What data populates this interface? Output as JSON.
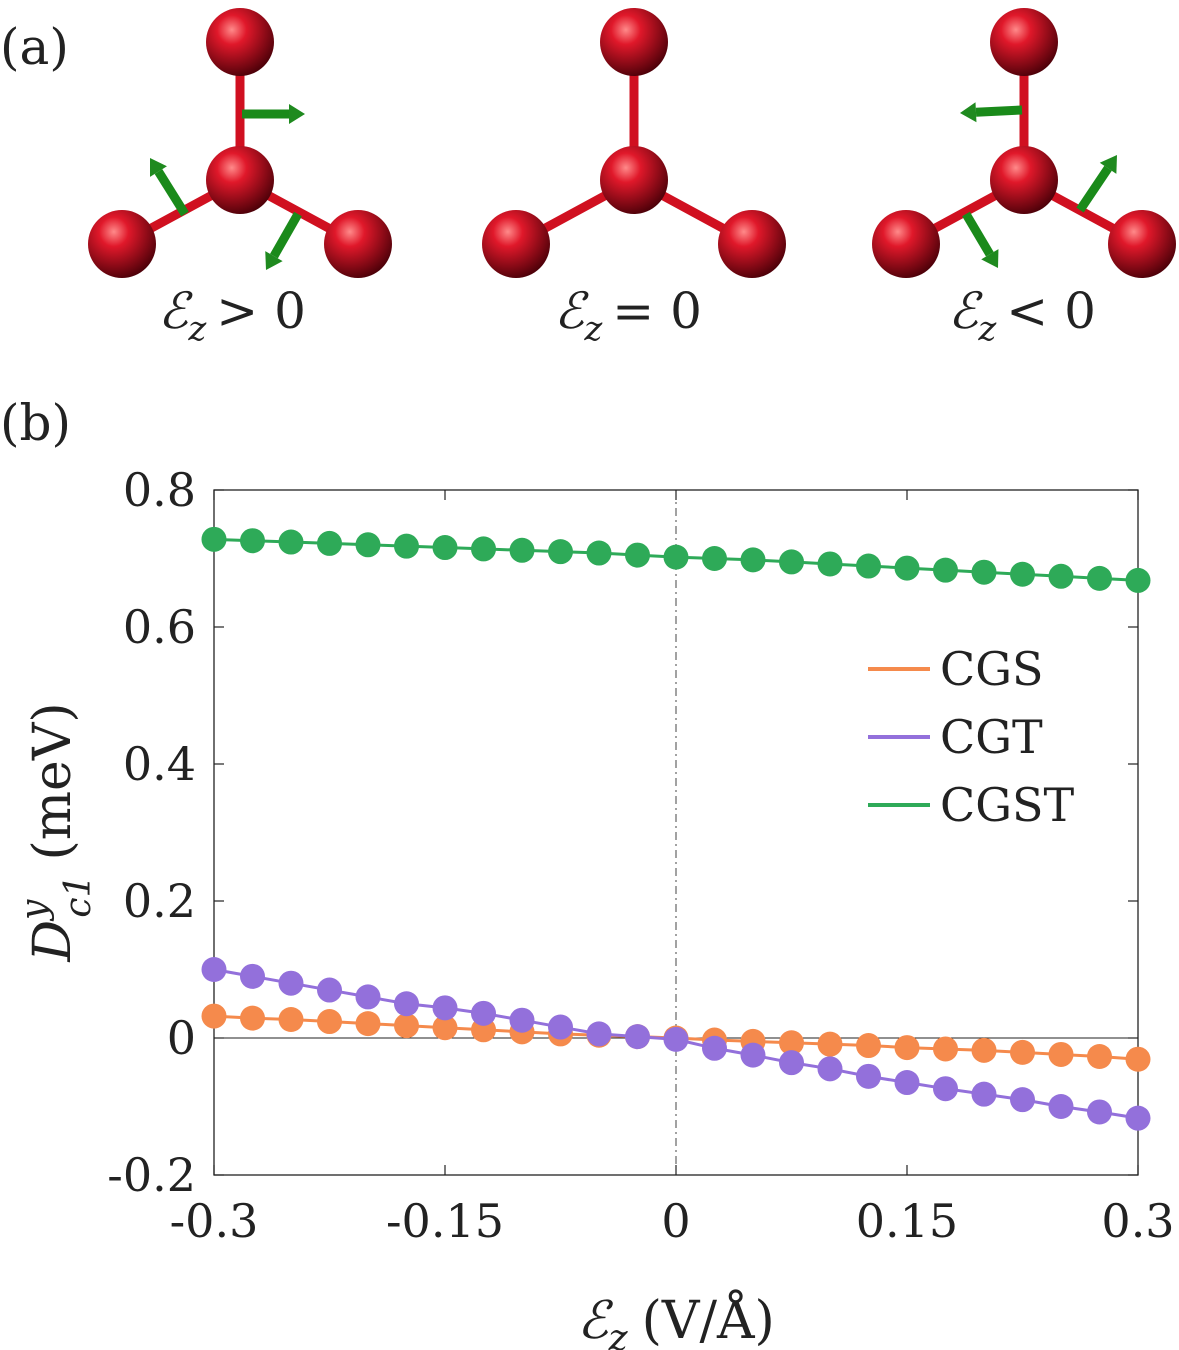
{
  "panel_a": {
    "label": "(a)",
    "captions": [
      {
        "symbol": "ℰ",
        "sub": "z",
        "relation": "> 0"
      },
      {
        "symbol": "ℰ",
        "sub": "z",
        "relation": "= 0"
      },
      {
        "symbol": "ℰ",
        "sub": "z",
        "relation": "< 0"
      }
    ],
    "atom_color": "#d01020",
    "arrow_color": "#1f8a1f"
  },
  "panel_b": {
    "label": "(b)"
  },
  "chart_data": {
    "type": "line",
    "title": "",
    "xlabel": {
      "symbol": "ℰ",
      "sub": "z",
      "unit": "(V/Å)"
    },
    "ylabel": {
      "base": "D",
      "sup": "y",
      "sub": "c1",
      "unit": "(meV)"
    },
    "xlim": [
      -0.3,
      0.3
    ],
    "ylim": [
      -0.2,
      0.8
    ],
    "xticks": [
      -0.3,
      -0.15,
      0,
      0.15,
      0.3
    ],
    "xtick_labels": [
      "-0.3",
      "-0.15",
      "0",
      "0.15",
      "0.3"
    ],
    "yticks": [
      -0.2,
      0,
      0.2,
      0.4,
      0.6,
      0.8
    ],
    "ytick_labels": [
      "-0.2",
      "0",
      "0.2",
      "0.4",
      "0.6",
      "0.8"
    ],
    "zero_lines": true,
    "x": [
      -0.3,
      -0.275,
      -0.25,
      -0.225,
      -0.2,
      -0.175,
      -0.15,
      -0.125,
      -0.1,
      -0.075,
      -0.05,
      -0.025,
      0,
      0.025,
      0.05,
      0.075,
      0.1,
      0.125,
      0.15,
      0.175,
      0.2,
      0.225,
      0.25,
      0.275,
      0.3
    ],
    "series": [
      {
        "name": "CGS",
        "color": "#f58a4c",
        "values": [
          0.032,
          0.029,
          0.027,
          0.024,
          0.021,
          0.018,
          0.015,
          0.012,
          0.009,
          0.006,
          0.004,
          0.002,
          0.0,
          -0.003,
          -0.005,
          -0.007,
          -0.009,
          -0.011,
          -0.014,
          -0.016,
          -0.018,
          -0.021,
          -0.024,
          -0.027,
          -0.031
        ]
      },
      {
        "name": "CGT",
        "color": "#9370db",
        "values": [
          0.1,
          0.09,
          0.08,
          0.07,
          0.06,
          0.05,
          0.044,
          0.036,
          0.026,
          0.016,
          0.006,
          0.002,
          -0.002,
          -0.015,
          -0.025,
          -0.036,
          -0.045,
          -0.056,
          -0.065,
          -0.074,
          -0.082,
          -0.09,
          -0.1,
          -0.108,
          -0.117
        ]
      },
      {
        "name": "CGST",
        "color": "#2eaa58",
        "values": [
          0.728,
          0.726,
          0.724,
          0.722,
          0.72,
          0.718,
          0.716,
          0.714,
          0.712,
          0.71,
          0.708,
          0.705,
          0.702,
          0.7,
          0.698,
          0.695,
          0.692,
          0.689,
          0.686,
          0.683,
          0.68,
          0.677,
          0.674,
          0.671,
          0.668
        ]
      }
    ],
    "legend": {
      "position": "right",
      "entries": [
        "CGS",
        "CGT",
        "CGST"
      ]
    }
  }
}
